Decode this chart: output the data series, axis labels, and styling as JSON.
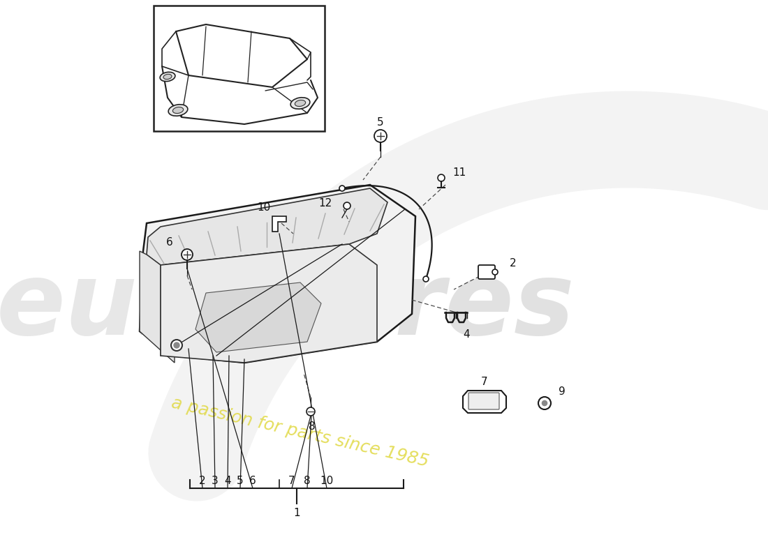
{
  "bg_color": "#ffffff",
  "line_color": "#1a1a1a",
  "watermark1_color": "#c8c8c8",
  "watermark2_color": "#e0d840",
  "part_label_color": "#111111",
  "fig_width": 11.0,
  "fig_height": 8.0,
  "dpi": 100,
  "bottom_numbers": [
    "2",
    "3",
    "4",
    "5",
    "6",
    "7",
    "8",
    "10"
  ],
  "watermark2": "a passion for parts since 1985"
}
